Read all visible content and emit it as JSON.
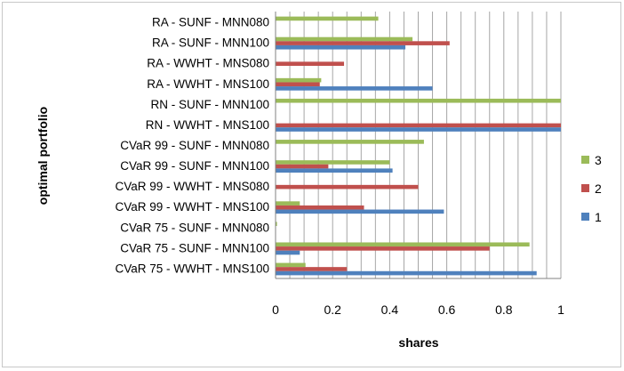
{
  "chart_data": {
    "type": "bar",
    "orientation": "horizontal",
    "title": "",
    "xlabel": "shares",
    "ylabel": "optimal portfolio",
    "xlim": [
      0,
      1
    ],
    "xticks": [
      0,
      0.2,
      0.4,
      0.6,
      0.8,
      1
    ],
    "xtick_labels": [
      "0",
      "0.2",
      "0.4",
      "0.6",
      "0.8",
      "1"
    ],
    "vertical_gridlines": "every 0.05",
    "legend_position": "right",
    "categories": [
      "RA - SUNF - MNN080",
      "RA - SUNF - MNN100",
      "RA - WWHT - MNS080",
      "RA - WWHT - MNS100",
      "RN - SUNF - MNN100",
      "RN - WWHT - MNS100",
      "CVaR 99 - SUNF - MNN080",
      "CVaR 99 - SUNF - MNN100",
      "CVaR 99 - WWHT - MNS080",
      "CVaR 99 - WWHT - MNS100",
      "CVaR 75 - SUNF - MNN080",
      "CVaR 75 - SUNF - MNN100",
      "CVaR 75 - WWHT - MNS100"
    ],
    "series": [
      {
        "name": "3",
        "color": "#9bbb59",
        "values": [
          0.36,
          0.48,
          0,
          0.16,
          1.0,
          0,
          0.52,
          0.4,
          0,
          0.085,
          0.005,
          0.89,
          0.105
        ]
      },
      {
        "name": "2",
        "color": "#c0504d",
        "values": [
          0,
          0.61,
          0.24,
          0.155,
          0,
          1.0,
          0,
          0.185,
          0.5,
          0.31,
          0,
          0.75,
          0.25
        ]
      },
      {
        "name": "1",
        "color": "#4f81bd",
        "values": [
          0,
          0.455,
          0,
          0.55,
          0,
          1.0,
          0,
          0.41,
          0,
          0.59,
          0,
          0.085,
          0.915
        ]
      }
    ]
  }
}
